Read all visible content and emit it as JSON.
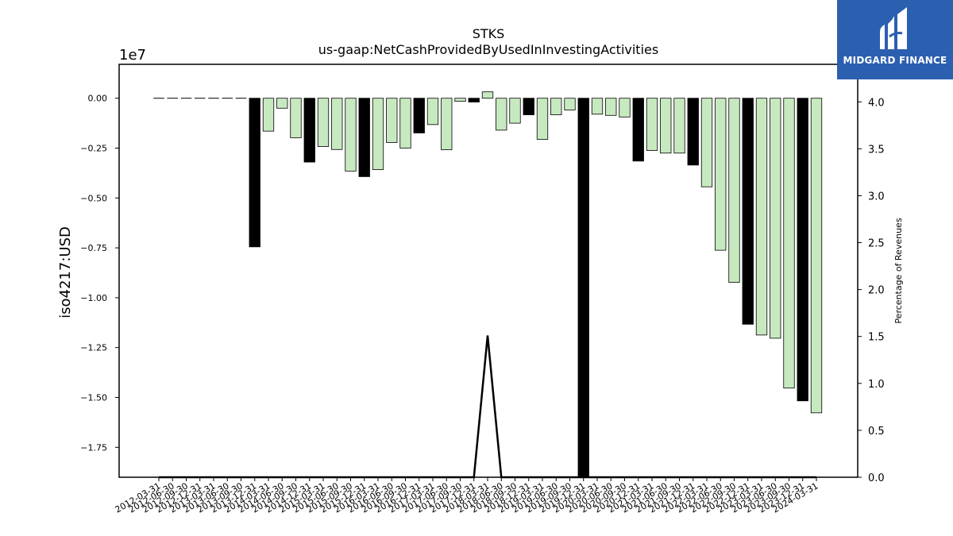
{
  "chart_data": {
    "type": "bar",
    "title": "STKS",
    "subtitle": "us-gaap:NetCashProvidedByUsedInInvestingActivities",
    "ylabel": "iso4217:USD",
    "y_offset_label": "1e7",
    "y2label": "Percentage of Revenues",
    "ylim": [
      -19000000,
      1700000
    ],
    "y2lim": [
      0,
      4.4
    ],
    "yticks": [
      "0.00",
      "−0.25",
      "−0.50",
      "−0.75",
      "−1.00",
      "−1.25",
      "−1.50",
      "−1.75"
    ],
    "yticks_values": [
      0,
      -2500000,
      -5000000,
      -7500000,
      -10000000,
      -12500000,
      -15000000,
      -17500000
    ],
    "y2ticks": [
      "0.0",
      "0.5",
      "1.0",
      "1.5",
      "2.0",
      "2.5",
      "3.0",
      "3.5",
      "4.0"
    ],
    "y2ticks_values": [
      0,
      0.5,
      1.0,
      1.5,
      2.0,
      2.5,
      3.0,
      3.5,
      4.0
    ],
    "categories": [
      "2012-03-31",
      "2012-06-30",
      "2012-09-30",
      "2012-12-31",
      "2013-03-31",
      "2013-06-30",
      "2013-09-30",
      "2013-12-31",
      "2014-03-31",
      "2014-06-30",
      "2014-09-30",
      "2014-12-31",
      "2015-03-31",
      "2015-06-30",
      "2015-09-30",
      "2015-12-31",
      "2016-03-31",
      "2016-06-30",
      "2016-09-30",
      "2016-12-31",
      "2017-03-31",
      "2017-06-30",
      "2017-09-30",
      "2017-12-31",
      "2018-03-31",
      "2018-06-30",
      "2018-09-30",
      "2018-12-31",
      "2019-03-31",
      "2019-06-30",
      "2019-09-30",
      "2019-12-31",
      "2020-03-31",
      "2020-06-30",
      "2020-09-30",
      "2020-12-31",
      "2021-03-31",
      "2021-06-30",
      "2021-09-30",
      "2021-12-31",
      "2022-03-31",
      "2022-06-30",
      "2022-09-30",
      "2022-12-31",
      "2023-03-31",
      "2023-06-30",
      "2023-09-30",
      "2023-12-31",
      "2024-03-31"
    ],
    "values": [
      0,
      0,
      0,
      0,
      0,
      0,
      0,
      -7450000,
      -1650000,
      -500000,
      -1980000,
      -3200000,
      -2420000,
      -2570000,
      -3650000,
      -3930000,
      -3580000,
      -2220000,
      -2500000,
      -1740000,
      -1320000,
      -2580000,
      -150000,
      -190000,
      320000,
      -1600000,
      -1250000,
      -830000,
      -2060000,
      -830000,
      -590000,
      -19000000,
      -800000,
      -860000,
      -940000,
      -3150000,
      -2620000,
      -2750000,
      -2750000,
      -3350000,
      -4440000,
      -7620000,
      -9230000,
      -11330000,
      -11870000,
      -12030000,
      -14530000,
      -15170000,
      -15770000
    ],
    "bar_colors": [
      "#c7e9c0",
      "#c7e9c0",
      "#c7e9c0",
      "#c7e9c0",
      "#c7e9c0",
      "#c7e9c0",
      "#c7e9c0",
      "#000000",
      "#c7e9c0",
      "#c7e9c0",
      "#c7e9c0",
      "#000000",
      "#c7e9c0",
      "#c7e9c0",
      "#c7e9c0",
      "#000000",
      "#c7e9c0",
      "#c7e9c0",
      "#c7e9c0",
      "#000000",
      "#c7e9c0",
      "#c7e9c0",
      "#c7e9c0",
      "#000000",
      "#c7e9c0",
      "#c7e9c0",
      "#c7e9c0",
      "#000000",
      "#c7e9c0",
      "#c7e9c0",
      "#c7e9c0",
      "#000000",
      "#c7e9c0",
      "#c7e9c0",
      "#c7e9c0",
      "#000000",
      "#c7e9c0",
      "#c7e9c0",
      "#c7e9c0",
      "#000000",
      "#c7e9c0",
      "#c7e9c0",
      "#c7e9c0",
      "#000000",
      "#c7e9c0",
      "#c7e9c0",
      "#c7e9c0",
      "#000000",
      "#c7e9c0"
    ],
    "line_series": {
      "axis": "secondary",
      "values": [
        0.0,
        0.0,
        0.0,
        0.0,
        0.0,
        0.0,
        0.0,
        0.0,
        0.0,
        0.0,
        0.0,
        0.0,
        0.0,
        0.0,
        0.0,
        0.0,
        0.0,
        0.0,
        0.0,
        0.0,
        0.0,
        0.0,
        0.0,
        0.0,
        1.51,
        0.0,
        0.0,
        0.0,
        0.0,
        0.0,
        0.0,
        0.0,
        0.0,
        0.0,
        0.0,
        0.0,
        0.0,
        0.0,
        0.0,
        0.0,
        0.0,
        0.0,
        0.0,
        0.0,
        0.0,
        0.0,
        0.0,
        0.0,
        0.0
      ]
    },
    "grid": false,
    "legend": "none"
  },
  "logo": {
    "text": "MIDGARD FINANCE",
    "bg_color": "#2b5fb0"
  }
}
